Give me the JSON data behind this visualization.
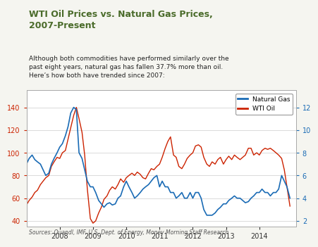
{
  "title_line1": "WTI Oil Prices vs. Natural Gas Prices,",
  "title_line2": "2007-Present",
  "subtitle": "Although both commodities have performed similarly over the\npast eight years, natural gas has fallen 37.7% more than oil.\nHere’s how both have trended since 2007:",
  "source": "Sources: Quandl, IMF, U.S. Dept. of Energy, Money Morning Staff Research",
  "title_color": "#4a6b2a",
  "oil_color": "#cc2200",
  "gas_color": "#1a6bb5",
  "background_color": "#f5f5f0",
  "plot_bg_color": "#ffffff",
  "left_ylim": [
    35,
    155
  ],
  "right_ylim": [
    1.5,
    13.5
  ],
  "left_yticks": [
    40,
    60,
    80,
    100,
    120,
    140
  ],
  "right_yticks": [
    2,
    4,
    6,
    8,
    10,
    12
  ],
  "xtick_years": [
    2008,
    2009,
    2010,
    2011,
    2012,
    2013,
    2014
  ],
  "wti_dates": [
    2007.0,
    2007.08,
    2007.17,
    2007.25,
    2007.33,
    2007.42,
    2007.5,
    2007.58,
    2007.67,
    2007.75,
    2007.83,
    2007.92,
    2008.0,
    2008.08,
    2008.17,
    2008.25,
    2008.33,
    2008.42,
    2008.5,
    2008.58,
    2008.67,
    2008.75,
    2008.83,
    2008.92,
    2009.0,
    2009.08,
    2009.17,
    2009.25,
    2009.33,
    2009.42,
    2009.5,
    2009.58,
    2009.67,
    2009.75,
    2009.83,
    2009.92,
    2010.0,
    2010.08,
    2010.17,
    2010.25,
    2010.33,
    2010.42,
    2010.5,
    2010.58,
    2010.67,
    2010.75,
    2010.83,
    2010.92,
    2011.0,
    2011.08,
    2011.17,
    2011.25,
    2011.33,
    2011.42,
    2011.5,
    2011.58,
    2011.67,
    2011.75,
    2011.83,
    2011.92,
    2012.0,
    2012.08,
    2012.17,
    2012.25,
    2012.33,
    2012.42,
    2012.5,
    2012.58,
    2012.67,
    2012.75,
    2012.83,
    2012.92,
    2013.0,
    2013.08,
    2013.17,
    2013.25,
    2013.33,
    2013.42,
    2013.5,
    2013.58,
    2013.67,
    2013.75,
    2013.83,
    2013.92,
    2014.0,
    2014.08,
    2014.17,
    2014.25,
    2014.33,
    2014.42,
    2014.5,
    2014.58,
    2014.67,
    2014.75,
    2014.83,
    2014.92
  ],
  "wti_values": [
    54,
    58,
    61,
    65,
    67,
    72,
    75,
    78,
    80,
    88,
    92,
    96,
    95,
    100,
    102,
    112,
    122,
    133,
    140,
    130,
    118,
    98,
    68,
    42,
    38,
    40,
    47,
    52,
    59,
    62,
    67,
    70,
    68,
    72,
    77,
    74,
    78,
    80,
    82,
    80,
    83,
    81,
    78,
    77,
    82,
    86,
    85,
    88,
    90,
    96,
    104,
    110,
    114,
    98,
    96,
    88,
    86,
    90,
    95,
    98,
    100,
    106,
    107,
    105,
    96,
    90,
    88,
    92,
    90,
    94,
    96,
    90,
    94,
    97,
    94,
    98,
    96,
    94,
    96,
    98,
    104,
    104,
    98,
    100,
    98,
    102,
    104,
    103,
    104,
    102,
    100,
    98,
    95,
    85,
    70,
    53
  ],
  "gas_dates": [
    2007.0,
    2007.08,
    2007.17,
    2007.25,
    2007.33,
    2007.42,
    2007.5,
    2007.58,
    2007.67,
    2007.75,
    2007.83,
    2007.92,
    2008.0,
    2008.08,
    2008.17,
    2008.25,
    2008.33,
    2008.42,
    2008.5,
    2008.58,
    2008.67,
    2008.75,
    2008.83,
    2008.92,
    2009.0,
    2009.08,
    2009.17,
    2009.25,
    2009.33,
    2009.42,
    2009.5,
    2009.58,
    2009.67,
    2009.75,
    2009.83,
    2009.92,
    2010.0,
    2010.08,
    2010.17,
    2010.25,
    2010.33,
    2010.42,
    2010.5,
    2010.58,
    2010.67,
    2010.75,
    2010.83,
    2010.92,
    2011.0,
    2011.08,
    2011.17,
    2011.25,
    2011.33,
    2011.42,
    2011.5,
    2011.58,
    2011.67,
    2011.75,
    2011.83,
    2011.92,
    2012.0,
    2012.08,
    2012.17,
    2012.25,
    2012.33,
    2012.42,
    2012.5,
    2012.58,
    2012.67,
    2012.75,
    2012.83,
    2012.92,
    2013.0,
    2013.08,
    2013.17,
    2013.25,
    2013.33,
    2013.42,
    2013.5,
    2013.58,
    2013.67,
    2013.75,
    2013.83,
    2013.92,
    2014.0,
    2014.08,
    2014.17,
    2014.25,
    2014.33,
    2014.42,
    2014.5,
    2014.58,
    2014.67,
    2014.75,
    2014.83,
    2014.92
  ],
  "gas_values": [
    7.0,
    7.5,
    7.8,
    7.4,
    7.2,
    7.0,
    6.5,
    6.0,
    6.2,
    7.0,
    7.5,
    8.0,
    8.5,
    8.8,
    9.5,
    10.3,
    11.5,
    12.0,
    11.8,
    8.0,
    7.5,
    6.5,
    5.5,
    5.0,
    5.0,
    4.5,
    3.8,
    3.5,
    3.2,
    3.5,
    3.6,
    3.4,
    3.5,
    4.0,
    4.2,
    5.0,
    5.5,
    5.0,
    4.5,
    4.0,
    4.2,
    4.5,
    4.8,
    5.0,
    5.2,
    5.5,
    5.8,
    6.0,
    5.0,
    5.5,
    5.0,
    5.0,
    4.5,
    4.5,
    4.0,
    4.2,
    4.5,
    4.0,
    4.0,
    4.5,
    4.0,
    4.5,
    4.5,
    4.0,
    3.0,
    2.5,
    2.5,
    2.5,
    2.7,
    3.0,
    3.2,
    3.5,
    3.5,
    3.8,
    4.0,
    4.2,
    4.0,
    4.0,
    3.8,
    3.6,
    3.7,
    4.0,
    4.2,
    4.5,
    4.5,
    4.8,
    4.5,
    4.5,
    4.2,
    4.5,
    4.5,
    4.8,
    6.0,
    5.5,
    5.0,
    4.0
  ]
}
